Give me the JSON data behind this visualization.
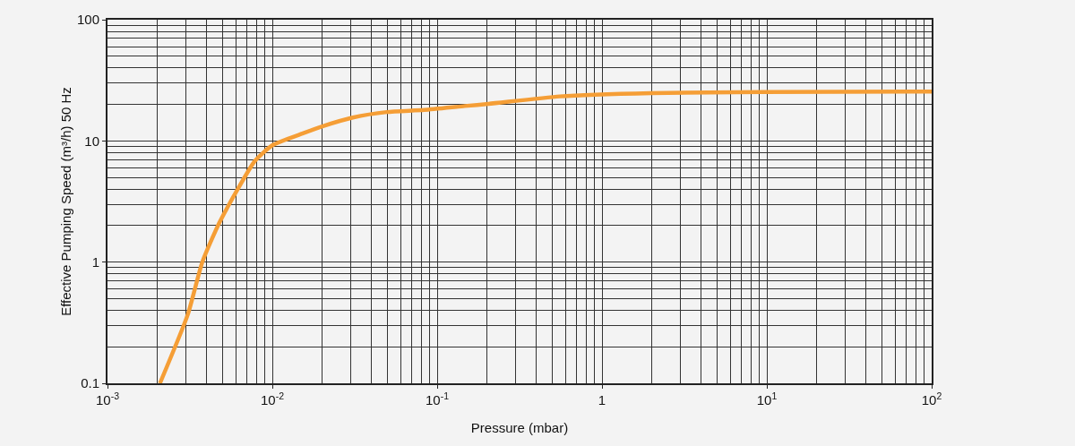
{
  "chart_data": {
    "type": "line",
    "xlabel": "Pressure (mbar)",
    "ylabel": "Effective Pumping Speed (m³/h) 50 Hz",
    "log": "xy",
    "grid": true,
    "line_style": "solid",
    "marker": "none",
    "xlim": [
      0.001,
      100
    ],
    "ylim": [
      0.1,
      100
    ],
    "xticks": [
      {
        "value": 0.001,
        "label": "10$^{-3}$"
      },
      {
        "value": 0.01,
        "label": "10$^{-2}$"
      },
      {
        "value": 0.1,
        "label": "10$^{-1}$"
      },
      1,
      {
        "value": 10,
        "label": "10$^{1}$"
      },
      {
        "value": 100,
        "label": "10$^{2}$"
      }
    ],
    "yticks": [
      0.1,
      1,
      10,
      100
    ],
    "x": [
      0.00208,
      0.00307,
      0.00376,
      0.00476,
      0.00617,
      0.00782,
      0.01,
      0.0152,
      0.0201,
      0.0308,
      0.0494,
      0.0835,
      0.147,
      0.205,
      0.555,
      1.99,
      9.4,
      100
    ],
    "series": [
      {
        "color": "#f59e36",
        "values": [
          0.1,
          0.37,
          1,
          2.1,
          4.0,
          6.8,
          9.2,
          11.5,
          13.2,
          15.6,
          17.3,
          18.0,
          19.4,
          20.2,
          23.3,
          24.8,
          25.3,
          25.5
        ]
      }
    ]
  }
}
